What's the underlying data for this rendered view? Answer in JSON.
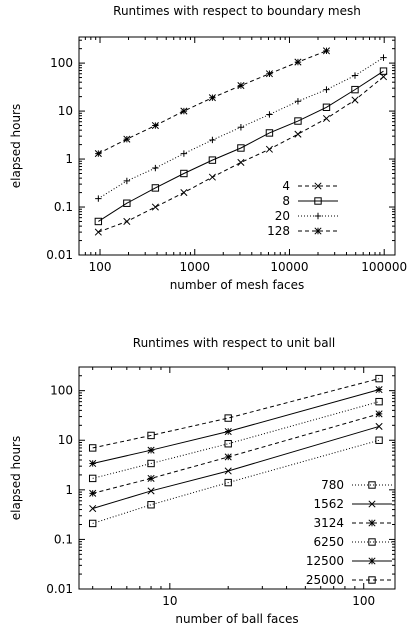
{
  "chart_data": [
    {
      "type": "line",
      "title": "Runtimes with respect to boundary mesh",
      "xlabel": "number of mesh faces",
      "ylabel": "elapsed hours",
      "x_scale": "log",
      "y_scale": "log",
      "xlim": [
        60,
        130000
      ],
      "ylim": [
        0.01,
        350
      ],
      "x_ticks": [
        100,
        1000,
        10000,
        100000
      ],
      "x_tick_labels": [
        "100",
        "1000",
        "10000",
        "100000"
      ],
      "y_ticks": [
        0.01,
        0.1,
        1,
        10,
        100
      ],
      "y_tick_labels": [
        "0.01",
        "0.1",
        "1",
        "10",
        "100"
      ],
      "legend_position": "bottom-right",
      "grid": false,
      "series": [
        {
          "name": "4",
          "marker": "x",
          "dash": "dashed",
          "x": [
            96,
            192,
            384,
            768,
            1536,
            3072,
            6144,
            12288,
            24576,
            49152,
            98304
          ],
          "y": [
            0.03,
            0.05,
            0.1,
            0.2,
            0.42,
            0.85,
            1.6,
            3.3,
            7,
            17,
            52
          ]
        },
        {
          "name": "8",
          "marker": "square",
          "dash": "solid",
          "x": [
            96,
            192,
            384,
            768,
            1536,
            3072,
            6144,
            12288,
            24576,
            49152,
            98304
          ],
          "y": [
            0.05,
            0.12,
            0.25,
            0.5,
            0.95,
            1.7,
            3.5,
            6.2,
            12,
            28,
            68
          ]
        },
        {
          "name": "20",
          "marker": "plus",
          "dash": "dotted",
          "x": [
            96,
            192,
            384,
            768,
            1536,
            3072,
            6144,
            12288,
            24576,
            49152,
            98304
          ],
          "y": [
            0.15,
            0.35,
            0.65,
            1.3,
            2.5,
            4.6,
            8.5,
            16,
            28,
            55,
            130
          ]
        },
        {
          "name": "128",
          "marker": "star",
          "dash": "dashed",
          "x": [
            96,
            192,
            384,
            768,
            1536,
            3072,
            6144,
            12288,
            24576
          ],
          "y": [
            1.3,
            2.6,
            5,
            10,
            19,
            34,
            60,
            105,
            180
          ]
        }
      ]
    },
    {
      "type": "line",
      "title": "Runtimes with respect to unit ball",
      "xlabel": "number of ball faces",
      "ylabel": "elapsed hours",
      "x_scale": "log",
      "y_scale": "log",
      "xlim": [
        3.4,
        145
      ],
      "ylim": [
        0.01,
        300
      ],
      "x_ticks": [
        10,
        100
      ],
      "x_tick_labels": [
        "10",
        "100"
      ],
      "y_ticks": [
        0.01,
        0.1,
        1,
        10,
        100
      ],
      "y_tick_labels": [
        "0.01",
        "0.1",
        "1",
        "10",
        "100"
      ],
      "legend_position": "bottom-right",
      "grid": false,
      "series": [
        {
          "name": "780",
          "marker": "square",
          "dash": "dotted",
          "x": [
            4,
            8,
            20,
            120
          ],
          "y": [
            0.21,
            0.5,
            1.4,
            10
          ]
        },
        {
          "name": "1562",
          "marker": "x",
          "dash": "solid",
          "x": [
            4,
            8,
            20,
            120
          ],
          "y": [
            0.42,
            0.95,
            2.4,
            19
          ]
        },
        {
          "name": "3124",
          "marker": "star",
          "dash": "dashed",
          "x": [
            4,
            8,
            20,
            120
          ],
          "y": [
            0.85,
            1.7,
            4.6,
            34
          ]
        },
        {
          "name": "6250",
          "marker": "square",
          "dash": "dotted",
          "x": [
            4,
            8,
            20,
            120
          ],
          "y": [
            1.7,
            3.4,
            8.5,
            60
          ]
        },
        {
          "name": "12500",
          "marker": "star",
          "dash": "solid",
          "x": [
            4,
            8,
            20,
            120
          ],
          "y": [
            3.4,
            6.3,
            15,
            105
          ]
        },
        {
          "name": "25000",
          "marker": "square",
          "dash": "dashed",
          "x": [
            4,
            8,
            20,
            120
          ],
          "y": [
            7,
            12.5,
            28,
            175
          ]
        }
      ]
    }
  ]
}
